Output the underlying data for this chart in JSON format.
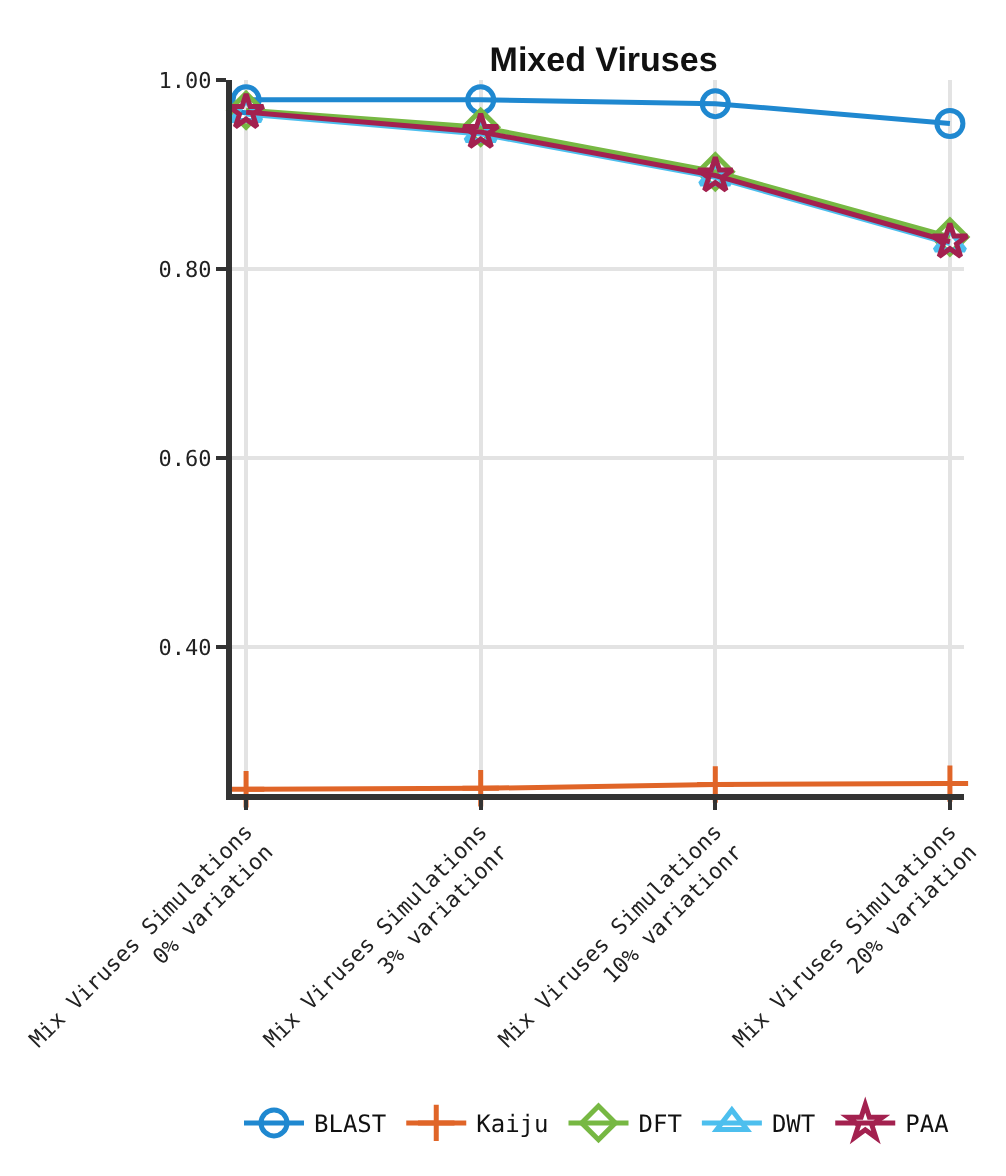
{
  "chart_data": {
    "type": "line",
    "title": "Mixed Viruses",
    "categories": [
      "Mix Viruses Simulations\n0% variation",
      "Mix Viruses Simulations\n3% variationr",
      "Mix Viruses Simulations\n10% variationr",
      "Mix Viruses Simulations\n20% variation"
    ],
    "series": [
      {
        "name": "BLAST",
        "color": "#1f88d0",
        "marker": "circle",
        "values": [
          0.979,
          0.979,
          0.975,
          0.954
        ]
      },
      {
        "name": "Kaiju",
        "color": "#e06528",
        "marker": "cross",
        "values": [
          0.25,
          0.251,
          0.255,
          0.256
        ]
      },
      {
        "name": "DFT",
        "color": "#77b843",
        "marker": "diamond",
        "values": [
          0.968,
          0.95,
          0.903,
          0.834
        ]
      },
      {
        "name": "DWT",
        "color": "#4dbfee",
        "marker": "triangle",
        "values": [
          0.964,
          0.943,
          0.897,
          0.827
        ]
      },
      {
        "name": "PAA",
        "color": "#a3214f",
        "marker": "star",
        "values": [
          0.966,
          0.945,
          0.899,
          0.829
        ]
      }
    ],
    "ylim": [
      0.245,
      1.0
    ],
    "yticks": [
      {
        "value": 1.0,
        "label": "1.00"
      },
      {
        "value": 0.8,
        "label": "0.80"
      },
      {
        "value": 0.6,
        "label": "0.60"
      },
      {
        "value": 0.4,
        "label": "0.40"
      }
    ],
    "grid": true,
    "legend": "bottom"
  }
}
